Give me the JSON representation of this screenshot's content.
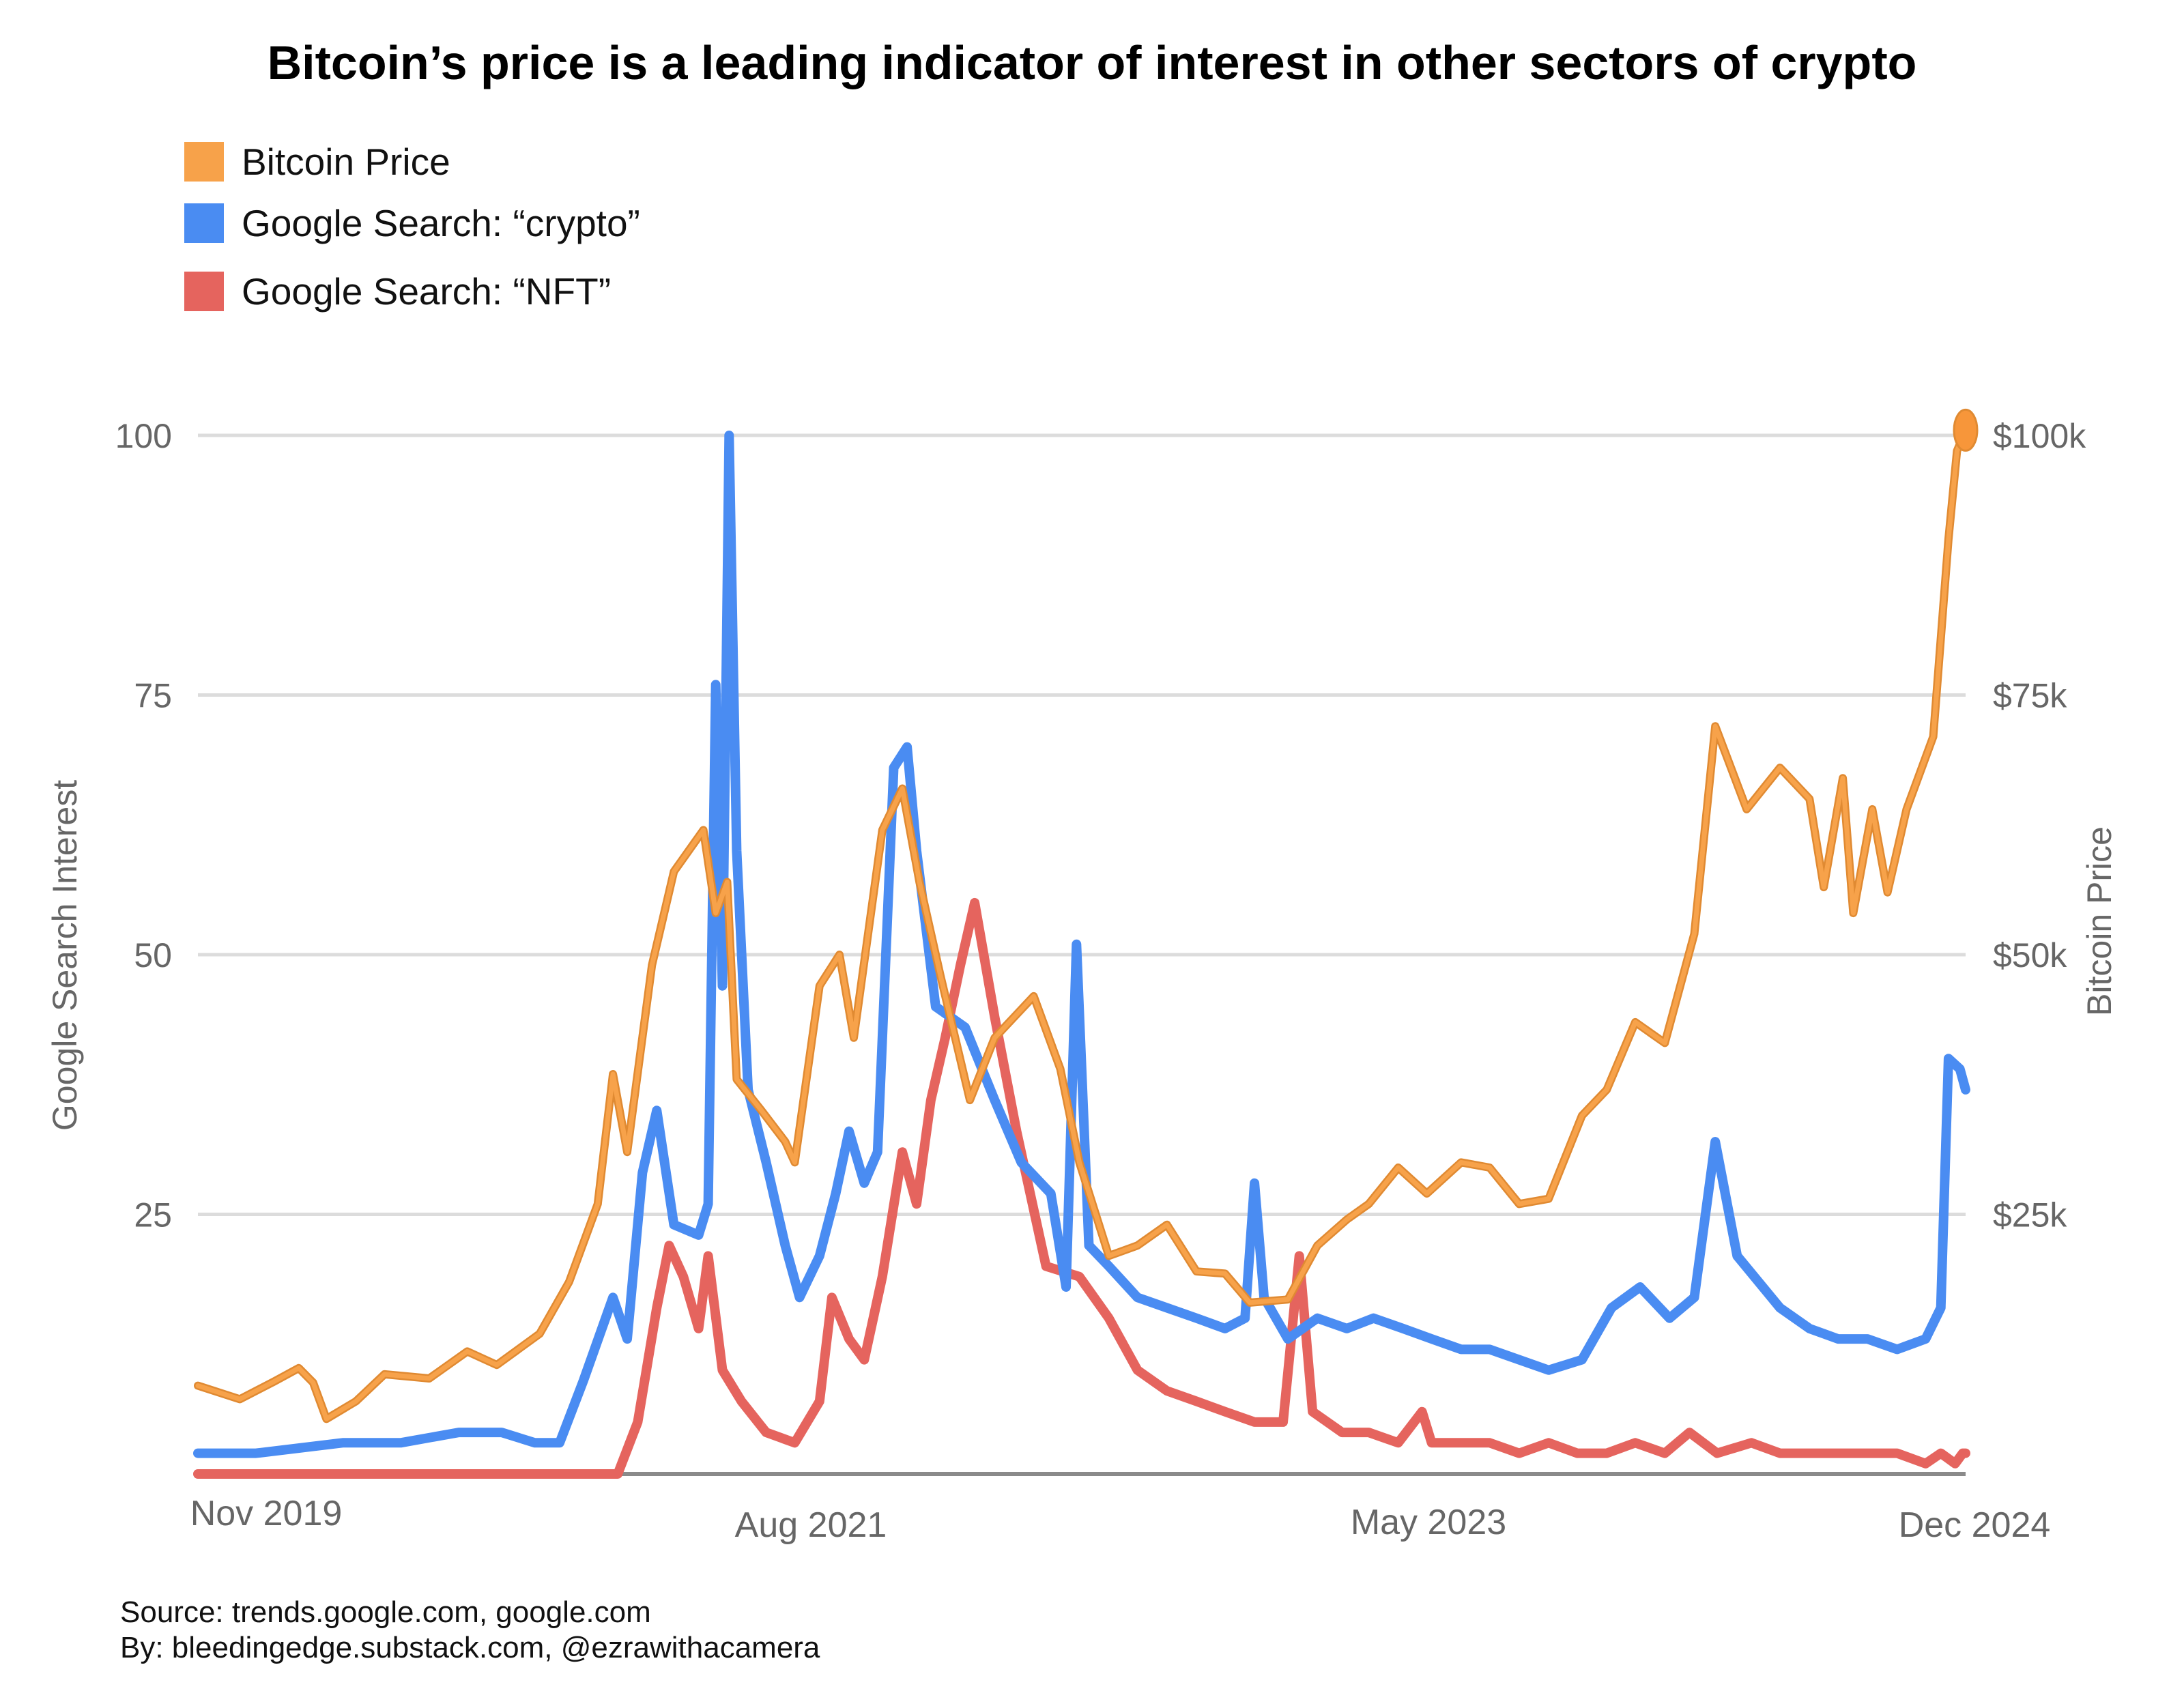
{
  "chart_data": {
    "type": "line",
    "title": "Bitcoin’s price is a leading indicator of interest in other sectors of crypto",
    "ylabel_left": "Google Search Interest",
    "ylabel_right": "Bitcoin Price",
    "y_left_ticks": [
      "100",
      "75",
      "50",
      "25"
    ],
    "y_right_ticks": [
      "$100k",
      "$75k",
      "$50k",
      "$25k"
    ],
    "ylim_left": [
      0,
      100
    ],
    "ylim_right": [
      0,
      100000
    ],
    "x_ticks": [
      "Nov 2019",
      "Aug 2021",
      "May 2023",
      "Dec 2024"
    ],
    "xlim": [
      "2019-11-01",
      "2024-12-01"
    ],
    "grid": true,
    "legend_position": "top-left",
    "series": [
      {
        "name": "Bitcoin Price",
        "axis": "right",
        "color": "#f7a24a",
        "points": [
          [
            "2019-11-01",
            8500
          ],
          [
            "2019-12-15",
            7200
          ],
          [
            "2020-01-20",
            8900
          ],
          [
            "2020-02-15",
            10200
          ],
          [
            "2020-03-01",
            8800
          ],
          [
            "2020-03-15",
            5300
          ],
          [
            "2020-04-15",
            7000
          ],
          [
            "2020-05-15",
            9600
          ],
          [
            "2020-07-01",
            9200
          ],
          [
            "2020-08-10",
            11800
          ],
          [
            "2020-09-10",
            10500
          ],
          [
            "2020-10-25",
            13500
          ],
          [
            "2020-11-25",
            18500
          ],
          [
            "2020-12-25",
            26000
          ],
          [
            "2021-01-10",
            38500
          ],
          [
            "2021-01-25",
            31000
          ],
          [
            "2021-02-20",
            49000
          ],
          [
            "2021-03-15",
            58000
          ],
          [
            "2021-04-15",
            62000
          ],
          [
            "2021-04-28",
            54000
          ],
          [
            "2021-05-10",
            57000
          ],
          [
            "2021-05-20",
            38000
          ],
          [
            "2021-06-15",
            35000
          ],
          [
            "2021-07-10",
            32000
          ],
          [
            "2021-07-20",
            30000
          ],
          [
            "2021-08-15",
            47000
          ],
          [
            "2021-09-05",
            50000
          ],
          [
            "2021-09-20",
            42000
          ],
          [
            "2021-10-20",
            62000
          ],
          [
            "2021-11-10",
            66000
          ],
          [
            "2021-11-28",
            57000
          ],
          [
            "2021-12-20",
            48000
          ],
          [
            "2022-01-20",
            36000
          ],
          [
            "2022-02-15",
            42000
          ],
          [
            "2022-03-28",
            46000
          ],
          [
            "2022-04-25",
            39000
          ],
          [
            "2022-05-15",
            30000
          ],
          [
            "2022-06-15",
            21000
          ],
          [
            "2022-07-15",
            22000
          ],
          [
            "2022-08-15",
            24000
          ],
          [
            "2022-09-15",
            19500
          ],
          [
            "2022-10-15",
            19300
          ],
          [
            "2022-11-10",
            16500
          ],
          [
            "2022-12-20",
            16800
          ],
          [
            "2023-01-20",
            22000
          ],
          [
            "2023-02-20",
            24500
          ],
          [
            "2023-03-15",
            26000
          ],
          [
            "2023-04-15",
            29500
          ],
          [
            "2023-05-15",
            27000
          ],
          [
            "2023-06-20",
            30000
          ],
          [
            "2023-07-20",
            29500
          ],
          [
            "2023-08-20",
            26000
          ],
          [
            "2023-09-20",
            26500
          ],
          [
            "2023-10-25",
            34500
          ],
          [
            "2023-11-20",
            37000
          ],
          [
            "2023-12-20",
            43500
          ],
          [
            "2024-01-20",
            41500
          ],
          [
            "2024-02-20",
            52000
          ],
          [
            "2024-03-13",
            72000
          ],
          [
            "2024-04-15",
            64000
          ],
          [
            "2024-05-20",
            68000
          ],
          [
            "2024-06-20",
            65000
          ],
          [
            "2024-07-05",
            56500
          ],
          [
            "2024-07-25",
            67000
          ],
          [
            "2024-08-05",
            54000
          ],
          [
            "2024-08-25",
            64000
          ],
          [
            "2024-09-10",
            56000
          ],
          [
            "2024-09-30",
            64000
          ],
          [
            "2024-10-28",
            71000
          ],
          [
            "2024-11-13",
            90000
          ],
          [
            "2024-11-22",
            98500
          ],
          [
            "2024-12-01",
            100500
          ]
        ]
      },
      {
        "name": "Google Search: “crypto”",
        "axis": "left",
        "color": "#4a8cf2",
        "points": [
          [
            "2019-11-01",
            2
          ],
          [
            "2020-01-01",
            2
          ],
          [
            "2020-04-01",
            3
          ],
          [
            "2020-06-01",
            3
          ],
          [
            "2020-08-01",
            4
          ],
          [
            "2020-09-15",
            4
          ],
          [
            "2020-10-20",
            3
          ],
          [
            "2020-11-15",
            3
          ],
          [
            "2020-12-10",
            9
          ],
          [
            "2021-01-10",
            17
          ],
          [
            "2021-01-25",
            13
          ],
          [
            "2021-02-10",
            29
          ],
          [
            "2021-02-25",
            35
          ],
          [
            "2021-03-15",
            24
          ],
          [
            "2021-04-10",
            23
          ],
          [
            "2021-04-20",
            26
          ],
          [
            "2021-04-28",
            76
          ],
          [
            "2021-05-05",
            47
          ],
          [
            "2021-05-12",
            100
          ],
          [
            "2021-05-20",
            60
          ],
          [
            "2021-06-01",
            37
          ],
          [
            "2021-06-20",
            30
          ],
          [
            "2021-07-10",
            22
          ],
          [
            "2021-07-25",
            17
          ],
          [
            "2021-08-15",
            21
          ],
          [
            "2021-09-01",
            27
          ],
          [
            "2021-09-15",
            33
          ],
          [
            "2021-10-01",
            28
          ],
          [
            "2021-10-15",
            31
          ],
          [
            "2021-11-01",
            68
          ],
          [
            "2021-11-15",
            70
          ],
          [
            "2021-11-25",
            60
          ],
          [
            "2021-12-15",
            45
          ],
          [
            "2022-01-15",
            43
          ],
          [
            "2022-02-15",
            36
          ],
          [
            "2022-03-15",
            30
          ],
          [
            "2022-04-15",
            27
          ],
          [
            "2022-05-01",
            18
          ],
          [
            "2022-05-12",
            51
          ],
          [
            "2022-05-25",
            22
          ],
          [
            "2022-06-15",
            20
          ],
          [
            "2022-07-15",
            17
          ],
          [
            "2022-08-15",
            16
          ],
          [
            "2022-09-15",
            15
          ],
          [
            "2022-10-15",
            14
          ],
          [
            "2022-11-05",
            15
          ],
          [
            "2022-11-15",
            28
          ],
          [
            "2022-11-25",
            17
          ],
          [
            "2022-12-20",
            13
          ],
          [
            "2023-01-20",
            15
          ],
          [
            "2023-02-20",
            14
          ],
          [
            "2023-03-20",
            15
          ],
          [
            "2023-04-20",
            14
          ],
          [
            "2023-05-20",
            13
          ],
          [
            "2023-06-20",
            12
          ],
          [
            "2023-07-20",
            12
          ],
          [
            "2023-08-20",
            11
          ],
          [
            "2023-09-20",
            10
          ],
          [
            "2023-10-25",
            11
          ],
          [
            "2023-11-25",
            16
          ],
          [
            "2023-12-25",
            18
          ],
          [
            "2024-01-25",
            15
          ],
          [
            "2024-02-20",
            17
          ],
          [
            "2024-03-13",
            32
          ],
          [
            "2024-04-05",
            21
          ],
          [
            "2024-05-20",
            16
          ],
          [
            "2024-06-20",
            14
          ],
          [
            "2024-07-20",
            13
          ],
          [
            "2024-08-20",
            13
          ],
          [
            "2024-09-20",
            12
          ],
          [
            "2024-10-20",
            13
          ],
          [
            "2024-11-05",
            16
          ],
          [
            "2024-11-13",
            40
          ],
          [
            "2024-11-25",
            39
          ],
          [
            "2024-12-01",
            37
          ]
        ]
      },
      {
        "name": "Google Search: “NFT”",
        "axis": "left",
        "color": "#e5645e",
        "points": [
          [
            "2019-11-01",
            0
          ],
          [
            "2020-12-01",
            0
          ],
          [
            "2021-01-15",
            0
          ],
          [
            "2021-02-05",
            5
          ],
          [
            "2021-02-25",
            16
          ],
          [
            "2021-03-10",
            22
          ],
          [
            "2021-03-25",
            19
          ],
          [
            "2021-04-10",
            14
          ],
          [
            "2021-04-20",
            21
          ],
          [
            "2021-05-05",
            10
          ],
          [
            "2021-05-25",
            7
          ],
          [
            "2021-06-20",
            4
          ],
          [
            "2021-07-20",
            3
          ],
          [
            "2021-08-15",
            7
          ],
          [
            "2021-08-28",
            17
          ],
          [
            "2021-09-15",
            13
          ],
          [
            "2021-10-01",
            11
          ],
          [
            "2021-10-20",
            19
          ],
          [
            "2021-11-10",
            31
          ],
          [
            "2021-11-25",
            26
          ],
          [
            "2021-12-10",
            36
          ],
          [
            "2021-12-25",
            42
          ],
          [
            "2022-01-10",
            49
          ],
          [
            "2022-01-25",
            55
          ],
          [
            "2022-02-15",
            44
          ],
          [
            "2022-03-10",
            33
          ],
          [
            "2022-04-10",
            20
          ],
          [
            "2022-05-15",
            19
          ],
          [
            "2022-06-15",
            15
          ],
          [
            "2022-07-15",
            10
          ],
          [
            "2022-08-15",
            8
          ],
          [
            "2022-09-15",
            7
          ],
          [
            "2022-10-15",
            6
          ],
          [
            "2022-11-15",
            5
          ],
          [
            "2022-12-15",
            5
          ],
          [
            "2023-01-01",
            21
          ],
          [
            "2023-01-15",
            6
          ],
          [
            "2023-02-15",
            4
          ],
          [
            "2023-03-15",
            4
          ],
          [
            "2023-04-15",
            3
          ],
          [
            "2023-05-10",
            6
          ],
          [
            "2023-05-20",
            3
          ],
          [
            "2023-06-20",
            3
          ],
          [
            "2023-07-20",
            3
          ],
          [
            "2023-08-20",
            2
          ],
          [
            "2023-09-20",
            3
          ],
          [
            "2023-10-20",
            2
          ],
          [
            "2023-11-20",
            2
          ],
          [
            "2023-12-20",
            3
          ],
          [
            "2024-01-20",
            2
          ],
          [
            "2024-02-15",
            4
          ],
          [
            "2024-03-15",
            2
          ],
          [
            "2024-04-20",
            3
          ],
          [
            "2024-05-20",
            2
          ],
          [
            "2024-06-20",
            2
          ],
          [
            "2024-07-20",
            2
          ],
          [
            "2024-08-20",
            2
          ],
          [
            "2024-09-20",
            2
          ],
          [
            "2024-10-20",
            1
          ],
          [
            "2024-11-05",
            2
          ],
          [
            "2024-11-20",
            1
          ],
          [
            "2024-11-28",
            2
          ],
          [
            "2024-12-01",
            2
          ]
        ]
      }
    ]
  },
  "footer": {
    "source": "Source: trends.google.com, google.com",
    "by": "By: bleedingedge.substack.com, @ezrawithacamera"
  }
}
